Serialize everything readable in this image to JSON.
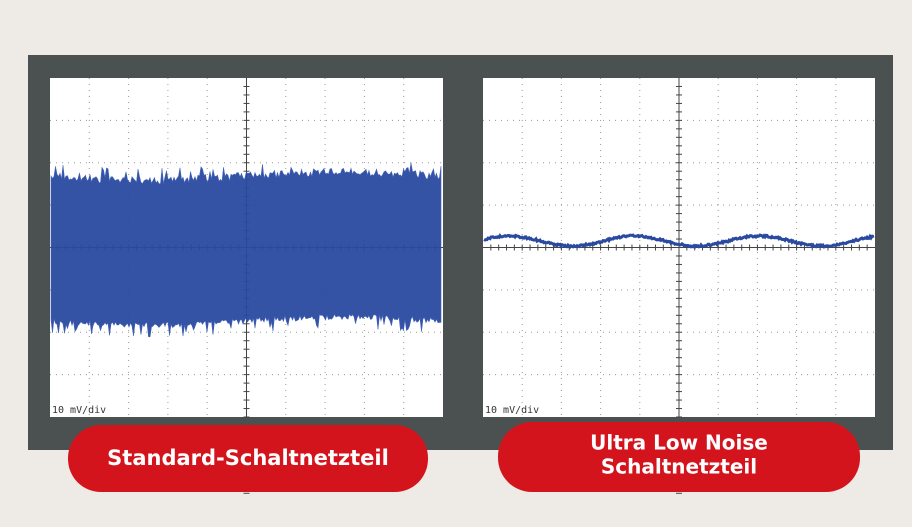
{
  "screens": [
    {
      "scale": "10 mV/div",
      "label": [
        "Standard-Schaltnetzteil"
      ]
    },
    {
      "scale": "10 mV/div",
      "label": [
        "Ultra Low Noise",
        "Schaltnetzteil"
      ]
    }
  ]
}
